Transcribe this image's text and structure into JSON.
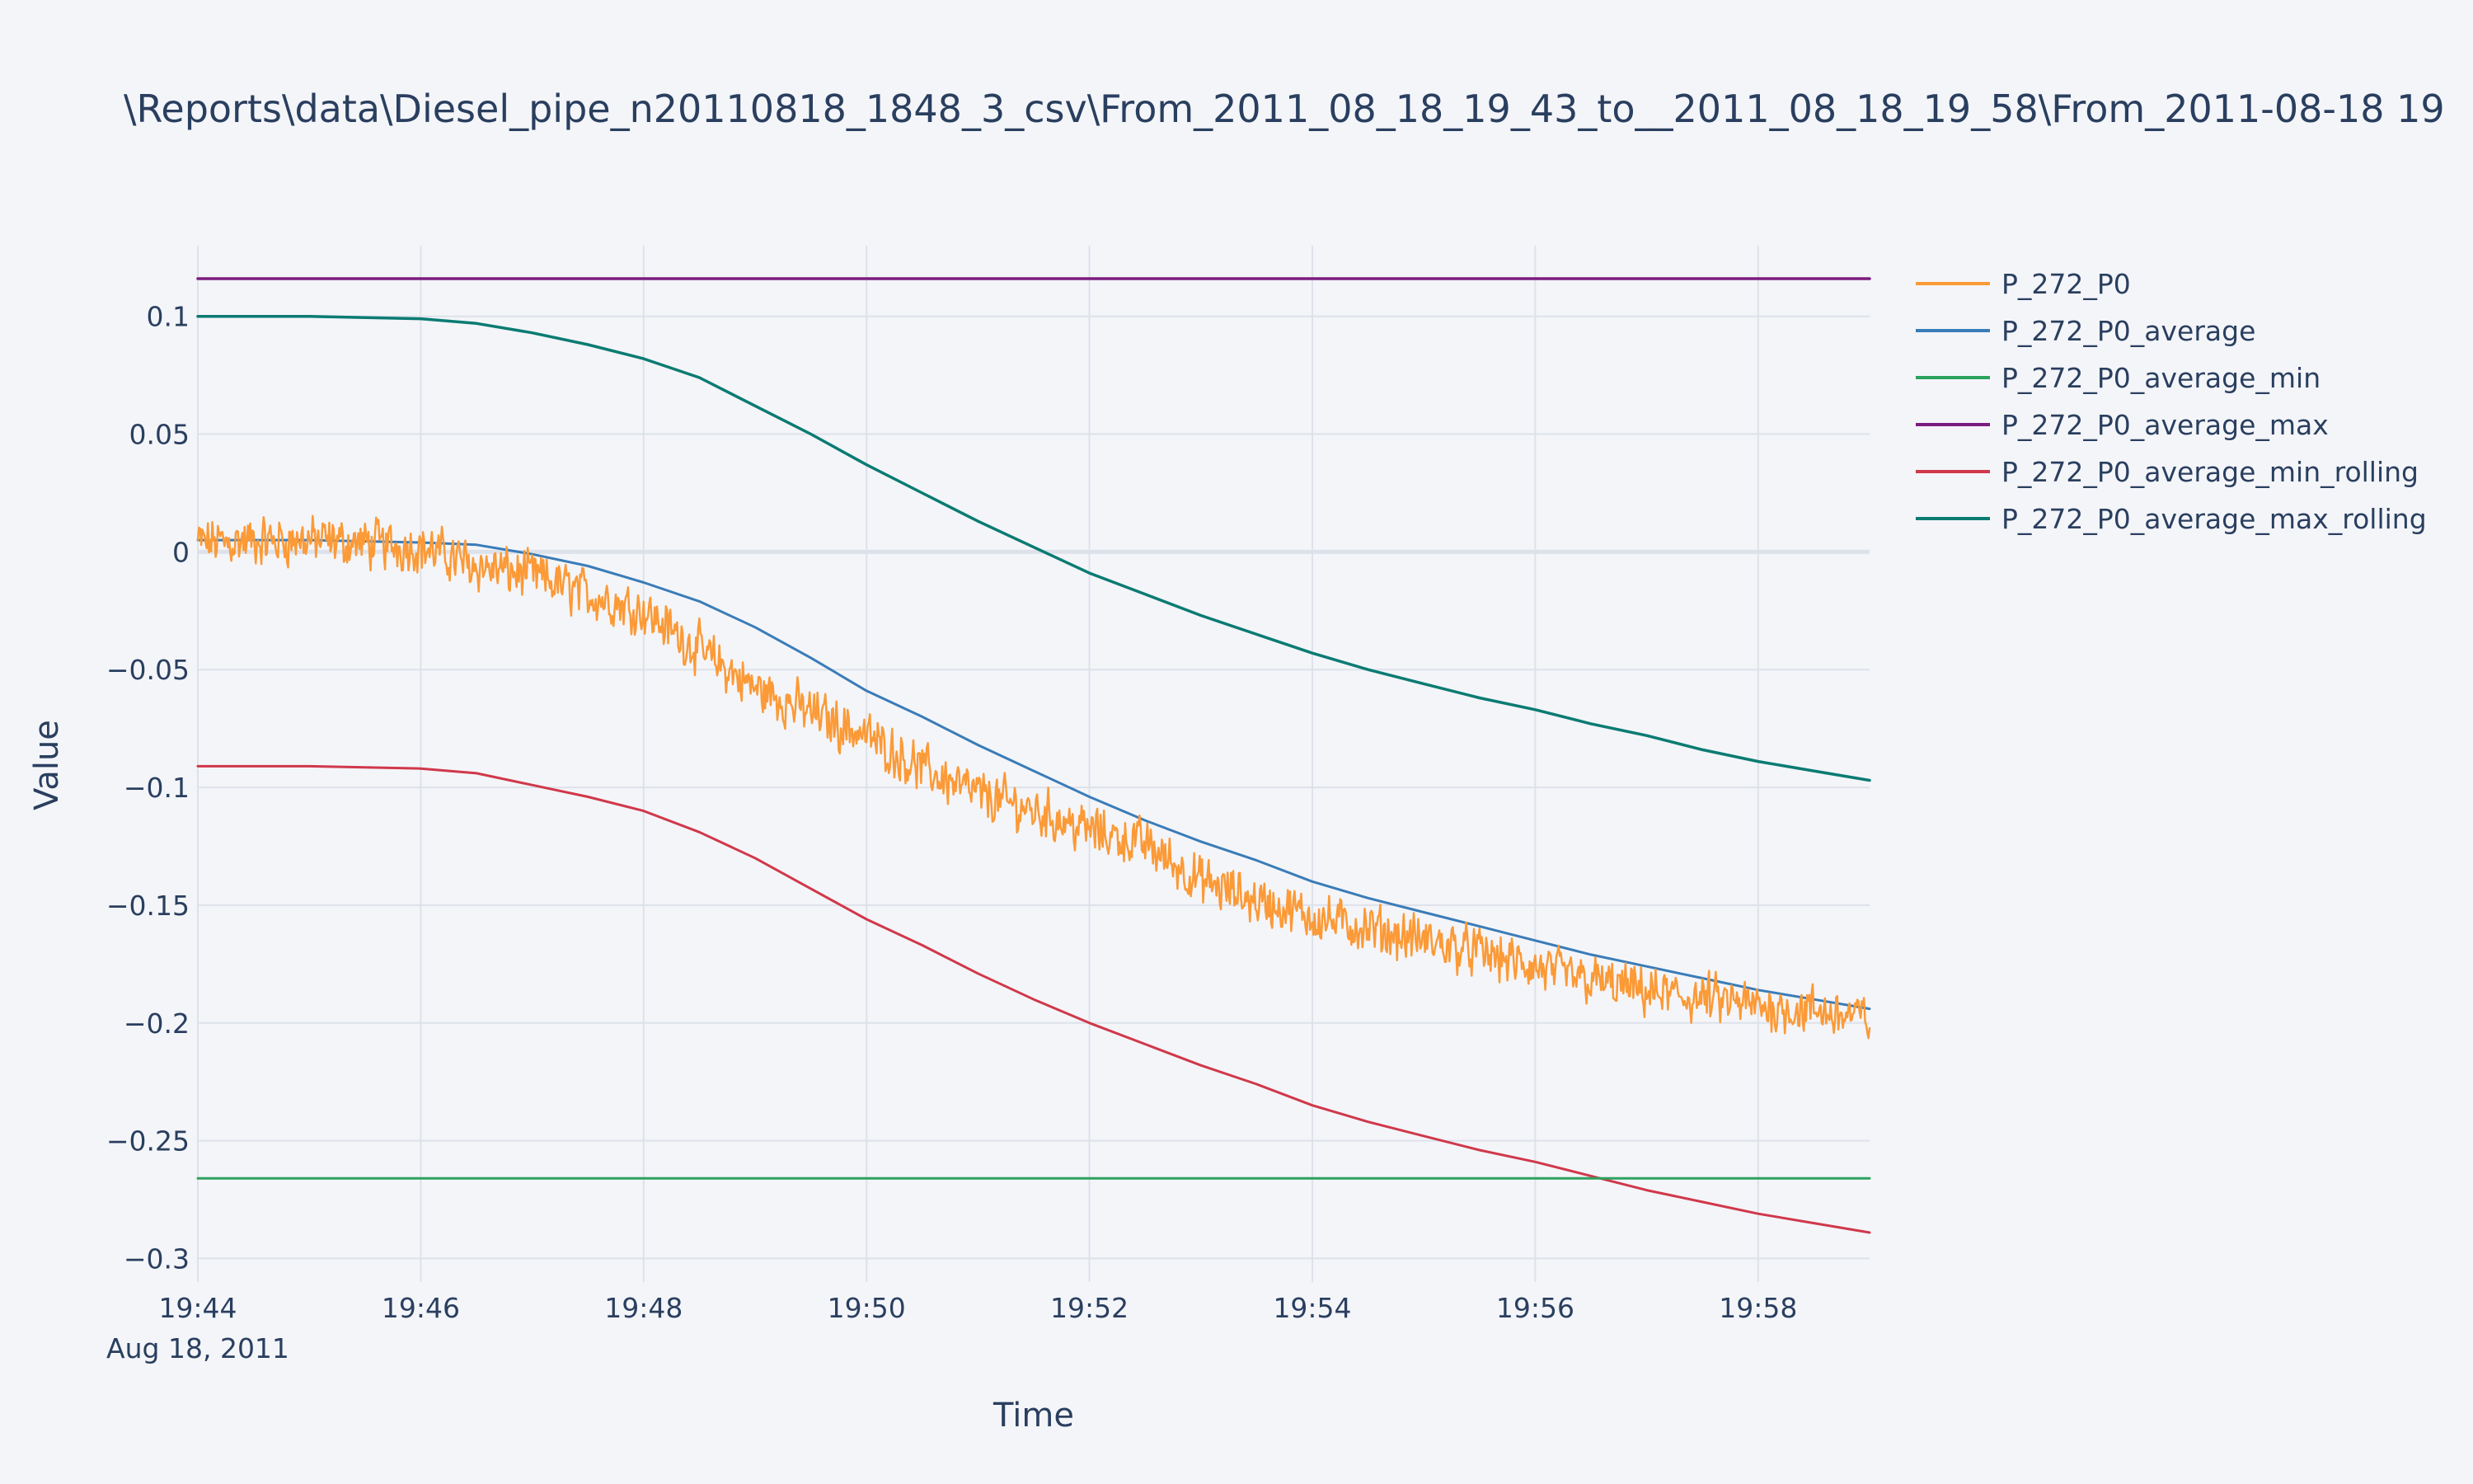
{
  "chart_data": {
    "type": "line",
    "title": "\\Reports\\data\\Diesel_pipe_n20110818_1848_3_csv\\From_2011_08_18_19_43_to__2011_08_18_19_58\\From_2011-08-18 19",
    "xlabel": "Time",
    "ylabel": "Value",
    "x_date_label": "Aug 18, 2011",
    "x_range_minutes": [
      0,
      15
    ],
    "x_tick_labels": [
      "19:44",
      "19:46",
      "19:48",
      "19:50",
      "19:52",
      "19:54",
      "19:56",
      "19:58"
    ],
    "ylim": [
      -0.31,
      0.13
    ],
    "y_ticks": [
      0.1,
      0.05,
      0,
      -0.05,
      -0.1,
      -0.15,
      -0.2,
      -0.25,
      -0.3
    ],
    "y_tick_labels": [
      "0.1",
      "0.05",
      "0",
      "−0.05",
      "−0.1",
      "−0.15",
      "−0.2",
      "−0.25",
      "−0.3"
    ],
    "grid": true,
    "legend_position": "top-right",
    "series": [
      {
        "name": "P_272_P0",
        "color": "#fb9a37",
        "width": 2.5,
        "noisy": true,
        "x": [
          "19:44",
          "19:45",
          "19:46",
          "19:46:30",
          "19:47",
          "19:47:30",
          "19:48",
          "19:48:30",
          "19:49",
          "19:49:30",
          "19:50",
          "19:50:30",
          "19:51",
          "19:51:30",
          "19:52",
          "19:52:30",
          "19:53",
          "19:53:30",
          "19:54",
          "19:54:30",
          "19:55",
          "19:55:30",
          "19:56",
          "19:56:30",
          "19:57",
          "19:57:30",
          "19:58",
          "19:58:30",
          "19:59"
        ],
        "y": [
          0.004,
          0.005,
          0.002,
          -0.006,
          -0.01,
          -0.018,
          -0.025,
          -0.042,
          -0.058,
          -0.068,
          -0.078,
          -0.092,
          -0.103,
          -0.11,
          -0.118,
          -0.124,
          -0.14,
          -0.148,
          -0.155,
          -0.16,
          -0.165,
          -0.17,
          -0.177,
          -0.182,
          -0.187,
          -0.19,
          -0.193,
          -0.195,
          -0.198
        ]
      },
      {
        "name": "P_272_P0_average",
        "color": "#3a7cb8",
        "width": 3,
        "x": [
          "19:44",
          "19:45",
          "19:46",
          "19:46:30",
          "19:47",
          "19:47:30",
          "19:48",
          "19:48:30",
          "19:49",
          "19:49:30",
          "19:50",
          "19:50:30",
          "19:51",
          "19:51:30",
          "19:52",
          "19:52:30",
          "19:53",
          "19:53:30",
          "19:54",
          "19:54:30",
          "19:55",
          "19:55:30",
          "19:56",
          "19:56:30",
          "19:57",
          "19:57:30",
          "19:58",
          "19:58:30",
          "19:59"
        ],
        "y": [
          0.005,
          0.005,
          0.004,
          0.003,
          -0.001,
          -0.006,
          -0.013,
          -0.021,
          -0.032,
          -0.045,
          -0.059,
          -0.07,
          -0.082,
          -0.093,
          -0.104,
          -0.114,
          -0.123,
          -0.131,
          -0.14,
          -0.147,
          -0.153,
          -0.159,
          -0.165,
          -0.171,
          -0.176,
          -0.181,
          -0.186,
          -0.19,
          -0.194
        ]
      },
      {
        "name": "P_272_P0_average_min",
        "color": "#2ca25f",
        "width": 3,
        "x": [
          "19:44",
          "19:59"
        ],
        "y": [
          -0.266,
          -0.266
        ]
      },
      {
        "name": "P_272_P0_average_max",
        "color": "#7b1d7e",
        "width": 3.5,
        "x": [
          "19:44",
          "19:59"
        ],
        "y": [
          0.116,
          0.116
        ]
      },
      {
        "name": "P_272_P0_average_min_rolling",
        "color": "#d0384a",
        "width": 3,
        "x": [
          "19:44",
          "19:45",
          "19:46",
          "19:46:30",
          "19:47",
          "19:47:30",
          "19:48",
          "19:48:30",
          "19:49",
          "19:49:30",
          "19:50",
          "19:50:30",
          "19:51",
          "19:51:30",
          "19:52",
          "19:52:30",
          "19:53",
          "19:53:30",
          "19:54",
          "19:54:30",
          "19:55",
          "19:55:30",
          "19:56",
          "19:56:30",
          "19:57",
          "19:57:30",
          "19:58",
          "19:58:30",
          "19:59"
        ],
        "y": [
          -0.091,
          -0.091,
          -0.092,
          -0.094,
          -0.099,
          -0.104,
          -0.11,
          -0.119,
          -0.13,
          -0.143,
          -0.156,
          -0.167,
          -0.179,
          -0.19,
          -0.2,
          -0.209,
          -0.218,
          -0.226,
          -0.235,
          -0.242,
          -0.248,
          -0.254,
          -0.259,
          -0.265,
          -0.271,
          -0.276,
          -0.281,
          -0.285,
          -0.289
        ]
      },
      {
        "name": "P_272_P0_average_max_rolling",
        "color": "#0a7b72",
        "width": 3.5,
        "x": [
          "19:44",
          "19:45",
          "19:46",
          "19:46:30",
          "19:47",
          "19:47:30",
          "19:48",
          "19:48:30",
          "19:49",
          "19:49:30",
          "19:50",
          "19:50:30",
          "19:51",
          "19:51:30",
          "19:52",
          "19:52:30",
          "19:53",
          "19:53:30",
          "19:54",
          "19:54:30",
          "19:55",
          "19:55:30",
          "19:56",
          "19:56:30",
          "19:57",
          "19:57:30",
          "19:58",
          "19:58:30",
          "19:59"
        ],
        "y": [
          0.1,
          0.1,
          0.099,
          0.097,
          0.093,
          0.088,
          0.082,
          0.074,
          0.062,
          0.05,
          0.037,
          0.025,
          0.013,
          0.002,
          -0.009,
          -0.018,
          -0.027,
          -0.035,
          -0.043,
          -0.05,
          -0.056,
          -0.062,
          -0.067,
          -0.073,
          -0.078,
          -0.084,
          -0.089,
          -0.093,
          -0.097
        ]
      }
    ]
  }
}
